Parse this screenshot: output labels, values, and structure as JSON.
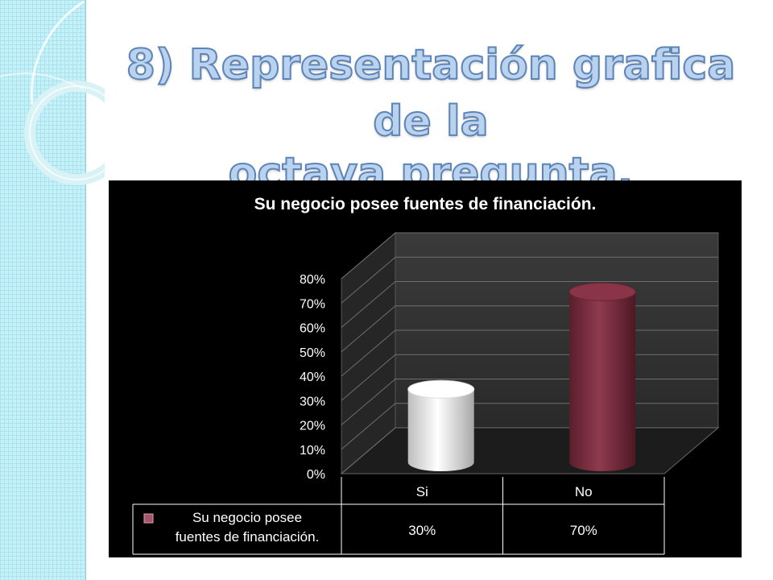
{
  "slide": {
    "title_line1": "8) Representación grafica de la",
    "title_line2": "octava pregunta."
  },
  "colors": {
    "background_band": "#c7f1f8",
    "series_si": "#f2f2f2",
    "series_no": "#7a2a3c",
    "legend_marker": "#a8546a"
  },
  "chart_data": {
    "type": "bar",
    "style": "3d-cylinder",
    "title": "Su negocio posee fuentes de financiación.",
    "categories": [
      "Si",
      "No"
    ],
    "series": [
      {
        "name": "Su negocio posee fuentes de financiación.",
        "values": [
          30,
          70
        ]
      }
    ],
    "value_labels": [
      "30%",
      "70%"
    ],
    "y_ticks": [
      "0%",
      "10%",
      "20%",
      "30%",
      "40%",
      "50%",
      "60%",
      "70%",
      "80%"
    ],
    "ylim": [
      0,
      80
    ],
    "grid": true,
    "legend": "data-table-bottom"
  }
}
